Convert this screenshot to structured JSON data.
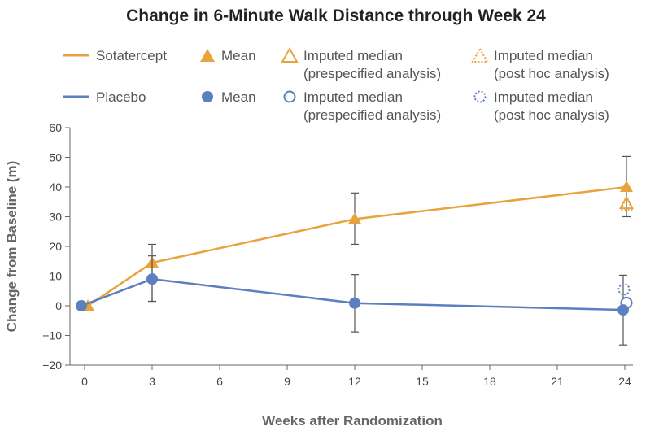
{
  "chart_data": {
    "type": "line",
    "title": "Change in 6-Minute Walk Distance through Week 24",
    "xlabel": "Weeks after Randomization",
    "ylabel": "Change from Baseline (m)",
    "xlim": [
      0,
      24
    ],
    "ylim": [
      -20,
      60
    ],
    "xticks": [
      0,
      3,
      6,
      9,
      12,
      15,
      18,
      21,
      24
    ],
    "yticks": [
      -20,
      -10,
      0,
      10,
      20,
      30,
      40,
      50,
      60
    ],
    "colors": {
      "sotatercept": "#e8a33d",
      "placebo": "#5b7fbf"
    },
    "series": [
      {
        "name": "Sotatercept",
        "x": [
          0,
          3,
          12,
          24
        ],
        "values": [
          0,
          14.5,
          29.2,
          40.0
        ],
        "err_low": [
          null,
          1.5,
          20.7,
          30.0
        ],
        "err_high": [
          null,
          20.7,
          38.0,
          50.3
        ],
        "imputed_prespecified": {
          "x": 24,
          "value": 34.5
        },
        "imputed_posthoc": {
          "x": 24,
          "value": 34.0
        }
      },
      {
        "name": "Placebo",
        "x": [
          0,
          3,
          12,
          24
        ],
        "values": [
          0,
          9.0,
          0.9,
          -1.4
        ],
        "err_low": [
          null,
          1.5,
          -8.8,
          -13.2
        ],
        "err_high": [
          null,
          16.8,
          10.5,
          10.3
        ],
        "imputed_prespecified": {
          "x": 24,
          "value": 1.0
        },
        "imputed_posthoc": {
          "x": 24,
          "value": 5.5
        }
      }
    ],
    "legend": {
      "sotatercept_label": "Sotatercept",
      "placebo_label": "Placebo",
      "mean": "Mean",
      "imputed_median": "Imputed median",
      "prespecified": "(prespecified analysis)",
      "posthoc": "(post hoc analysis)"
    }
  }
}
